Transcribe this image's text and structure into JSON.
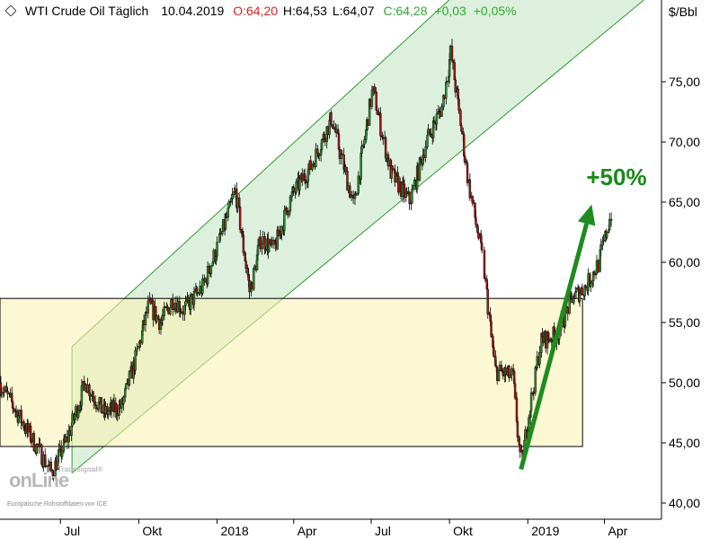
{
  "header": {
    "icon": "diamond-icon",
    "title": "WTI Crude Oil Täglich",
    "date": "10.04.2019",
    "open": "O:64,20",
    "high": "H:64,53",
    "low": "L:64,07",
    "close": "C:64,28",
    "change": "+0,03",
    "change_pct": "+0,05%",
    "colors": {
      "title": "#000000",
      "open": "#e02020",
      "close": "#2eaa2e"
    }
  },
  "unit": "$/Bbl",
  "watermark": {
    "brand": "Tradesignal®",
    "logo": "onLine",
    "source": "Europäische Rohstoffdaten von ICE"
  },
  "annotation": {
    "text": "+50%",
    "color": "#1a8a1a"
  },
  "chart_data": {
    "type": "candlestick",
    "ylim": [
      38.8,
      80.3
    ],
    "y_ticks": [
      "40,00",
      "45,00",
      "50,00",
      "55,00",
      "60,00",
      "65,00",
      "70,00",
      "75,00"
    ],
    "y_tick_values": [
      40,
      45,
      50,
      55,
      60,
      65,
      70,
      75
    ],
    "x_ticks": [
      {
        "label": "Jul",
        "date": "2017-07-01"
      },
      {
        "label": "Okt",
        "date": "2017-10-01"
      },
      {
        "label": "2018",
        "date": "2018-01-01"
      },
      {
        "label": "Apr",
        "date": "2018-04-01"
      },
      {
        "label": "Jul",
        "date": "2018-07-01"
      },
      {
        "label": "Okt",
        "date": "2018-10-01"
      },
      {
        "label": "2019",
        "date": "2019-01-01"
      },
      {
        "label": "Apr",
        "date": "2019-04-01"
      }
    ],
    "price_path": [
      {
        "date": "2017-04-21",
        "price": 50.0
      },
      {
        "date": "2017-06-21",
        "price": 42.5
      },
      {
        "date": "2017-07-10",
        "price": 45.5
      },
      {
        "date": "2017-07-31",
        "price": 50.0
      },
      {
        "date": "2017-08-21",
        "price": 47.5
      },
      {
        "date": "2017-09-11",
        "price": 48.0
      },
      {
        "date": "2017-09-28",
        "price": 52.0
      },
      {
        "date": "2017-10-13",
        "price": 56.5
      },
      {
        "date": "2017-10-27",
        "price": 55.0
      },
      {
        "date": "2017-11-11",
        "price": 57.0
      },
      {
        "date": "2017-11-23",
        "price": 56.0
      },
      {
        "date": "2017-12-16",
        "price": 58.0
      },
      {
        "date": "2018-01-03",
        "price": 61.5
      },
      {
        "date": "2018-01-23",
        "price": 66.0
      },
      {
        "date": "2018-02-09",
        "price": 57.5
      },
      {
        "date": "2018-02-22",
        "price": 62.0
      },
      {
        "date": "2018-03-09",
        "price": 61.0
      },
      {
        "date": "2018-03-30",
        "price": 65.5
      },
      {
        "date": "2018-04-22",
        "price": 68.0
      },
      {
        "date": "2018-05-16",
        "price": 72.0
      },
      {
        "date": "2018-06-11",
        "price": 64.5
      },
      {
        "date": "2018-07-03",
        "price": 74.5
      },
      {
        "date": "2018-07-24",
        "price": 67.5
      },
      {
        "date": "2018-08-16",
        "price": 65.0
      },
      {
        "date": "2018-09-04",
        "price": 70.0
      },
      {
        "date": "2018-09-23",
        "price": 73.0
      },
      {
        "date": "2018-10-03",
        "price": 77.5
      },
      {
        "date": "2018-10-23",
        "price": 67.0
      },
      {
        "date": "2018-11-10",
        "price": 60.0
      },
      {
        "date": "2018-11-24",
        "price": 51.0
      },
      {
        "date": "2018-12-15",
        "price": 50.5
      },
      {
        "date": "2018-12-24",
        "price": 43.0
      },
      {
        "date": "2019-01-03",
        "price": 47.5
      },
      {
        "date": "2019-01-17",
        "price": 53.5
      },
      {
        "date": "2019-02-05",
        "price": 54.0
      },
      {
        "date": "2019-02-22",
        "price": 57.0
      },
      {
        "date": "2019-03-11",
        "price": 58.0
      },
      {
        "date": "2019-03-26",
        "price": 60.0
      },
      {
        "date": "2019-04-10",
        "price": 64.3
      }
    ],
    "channel": {
      "lower": [
        {
          "date": "2017-06-15",
          "price": 42.5
        },
        {
          "date": "2019-04-30",
          "price": 83.0
        }
      ],
      "upper": [
        {
          "date": "2017-06-15",
          "price": 53.0
        },
        {
          "date": "2019-04-30",
          "price": 98.0
        }
      ]
    },
    "range_box": {
      "start": "2017-04-21",
      "end": "2019-04-08",
      "low": 44.7,
      "high": 57.0
    },
    "arrow": {
      "from": {
        "date": "2018-12-24",
        "price": 42.8
      },
      "to": {
        "date": "2019-04-05",
        "price": 64.8
      }
    }
  }
}
